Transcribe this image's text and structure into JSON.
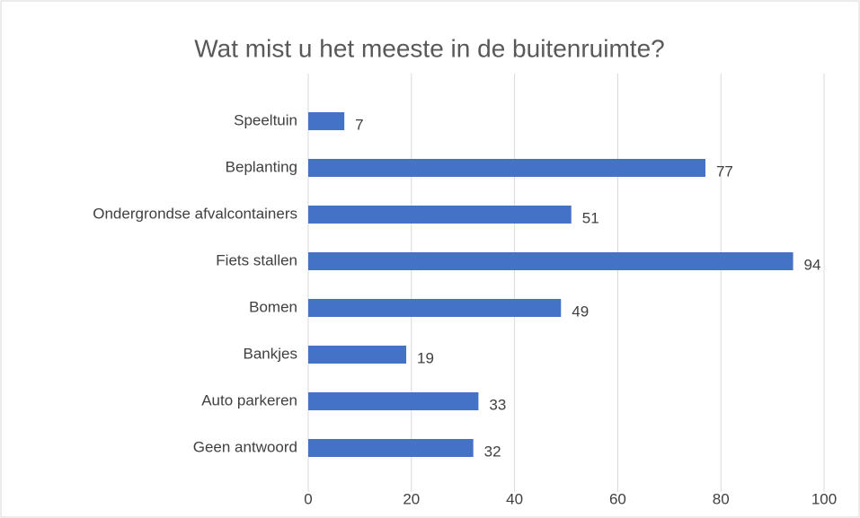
{
  "chart_data": {
    "type": "bar",
    "orientation": "horizontal",
    "title": "Wat mist u het meeste in de buitenruimte?",
    "categories": [
      "Speeltuin",
      "Beplanting",
      "Ondergrondse afvalcontainers",
      "Fiets stallen",
      "Bomen",
      "Bankjes",
      "Auto parkeren",
      "Geen antwoord"
    ],
    "values": [
      7,
      77,
      51,
      94,
      49,
      19,
      33,
      32
    ],
    "color": "#4472c4",
    "xlim": [
      0,
      100
    ],
    "xticks": [
      0,
      20,
      40,
      60,
      80,
      100
    ],
    "grid": true
  }
}
